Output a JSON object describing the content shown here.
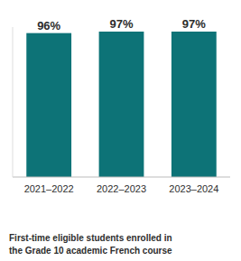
{
  "chart_data": {
    "type": "bar",
    "categories": [
      "2021–2022",
      "2022–2023",
      "2023–2024"
    ],
    "values": [
      96,
      97,
      97
    ],
    "value_labels": [
      "96%",
      "97%",
      "97%"
    ],
    "data_labels": true,
    "color": "#0d7377",
    "ylim": [
      0,
      100
    ],
    "tick_labels": "x",
    "annotations": [
      "First-time eligible students enrolled in\nthe Grade 10 academic French course"
    ]
  }
}
